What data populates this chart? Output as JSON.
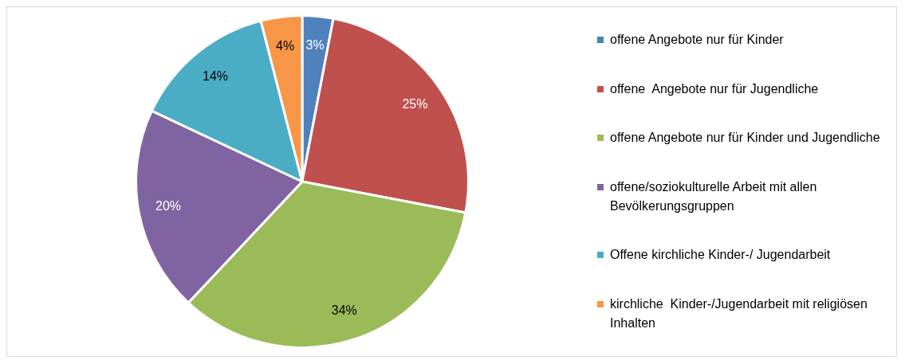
{
  "chart_data": {
    "type": "pie",
    "categories": [
      "offene Angebote nur für Kinder",
      "offene  Angebote nur für Jugendliche",
      "offene Angebote nur für Kinder und Jugendliche",
      "offene/soziokulturelle Arbeit mit allen Bevölkerungsgruppen",
      "Offene kirchliche Kinder-/ Jugendarbeit",
      "kirchliche  Kinder-/Jugendarbeit mit religiösen Inhalten"
    ],
    "values": [
      3,
      25,
      34,
      20,
      14,
      4
    ],
    "colors": [
      "#4f81bd",
      "#c0504d",
      "#9bbb59",
      "#8064a2",
      "#4bacc6",
      "#f79646"
    ],
    "value_labels": [
      "3%",
      "25%",
      "34%",
      "20%",
      "14%",
      "4%"
    ],
    "legend": "right"
  }
}
